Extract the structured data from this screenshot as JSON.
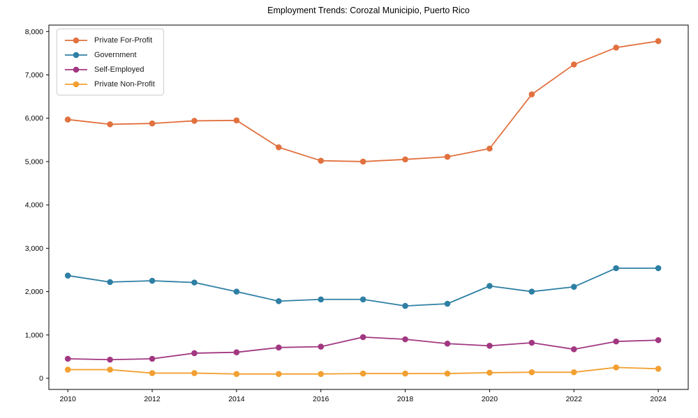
{
  "figure": {
    "title": "Employment Trends: Corozal Municipio, Puerto Rico",
    "background_color": "#ffffff",
    "frame_color": "#000000"
  },
  "chart_data": {
    "type": "line",
    "title": "Employment Trends: Corozal Municipio, Puerto Rico",
    "xlabel": "",
    "ylabel": "",
    "grid": false,
    "legend_position": "upper-left",
    "x": [
      2010,
      2011,
      2012,
      2013,
      2014,
      2015,
      2016,
      2017,
      2018,
      2019,
      2020,
      2021,
      2022,
      2023,
      2024
    ],
    "series": [
      {
        "name": "Private For-Profit",
        "color": "#e1713e",
        "marker": "circle",
        "values": [
          5970,
          5860,
          5880,
          5940,
          5950,
          5330,
          5020,
          5000,
          5050,
          5110,
          5300,
          6550,
          7240,
          7630,
          7780
        ]
      },
      {
        "name": "Government",
        "color": "#2e7fa4",
        "marker": "circle",
        "values": [
          2370,
          2220,
          2250,
          2210,
          2000,
          1780,
          1820,
          1820,
          1670,
          1720,
          2130,
          2000,
          2110,
          2540,
          2540
        ]
      },
      {
        "name": "Self-Employed",
        "color": "#a23781",
        "marker": "circle",
        "values": [
          450,
          430,
          450,
          580,
          600,
          710,
          730,
          950,
          900,
          800,
          750,
          820,
          670,
          850,
          880
        ]
      },
      {
        "name": "Private Non-Profit",
        "color": "#f2a032",
        "marker": "circle",
        "values": [
          200,
          200,
          120,
          120,
          100,
          100,
          100,
          110,
          110,
          110,
          130,
          140,
          140,
          250,
          220
        ]
      }
    ],
    "xticks": [
      2010,
      2012,
      2014,
      2016,
      2018,
      2020,
      2022,
      2024
    ],
    "xtick_labels": [
      "2010",
      "2012",
      "2014",
      "2016",
      "2018",
      "2020",
      "2022",
      "2024"
    ],
    "yticks": [
      0,
      1000,
      2000,
      3000,
      4000,
      5000,
      6000,
      7000,
      8000
    ],
    "ytick_labels": [
      "0",
      "1,000",
      "2,000",
      "3,000",
      "4,000",
      "5,000",
      "6,000",
      "7,000",
      "8,000"
    ],
    "xlim": [
      2009.55,
      2024.71
    ],
    "ylim": [
      -257,
      8149
    ]
  }
}
